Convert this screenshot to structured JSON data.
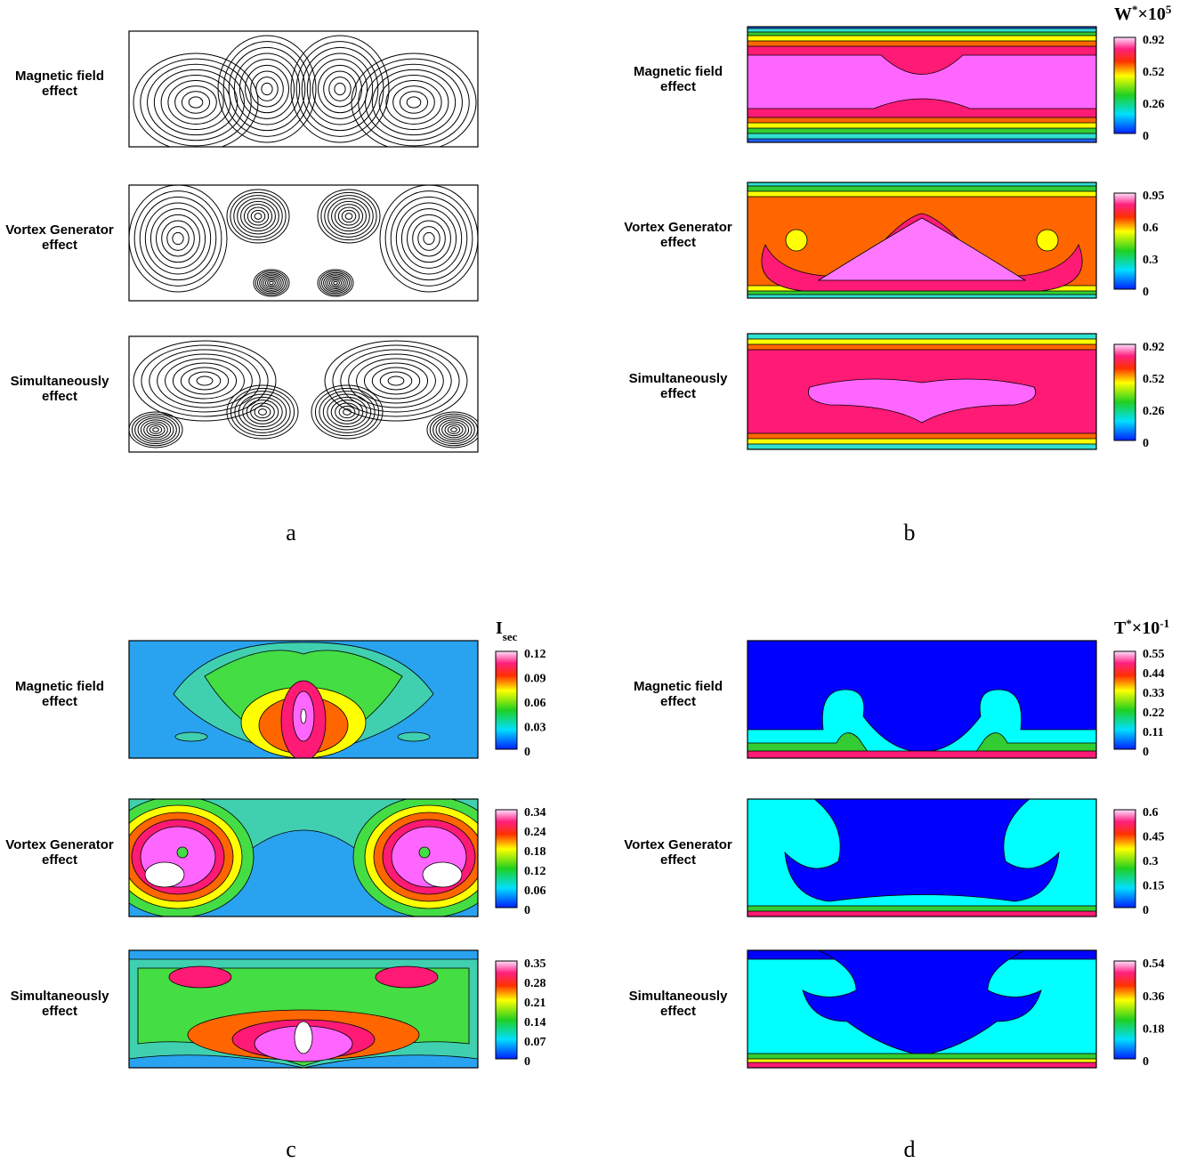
{
  "panels": [
    {
      "label": "a",
      "rows": [
        {
          "lines": [
            "Magnetic field",
            "effect"
          ]
        },
        {
          "lines": [
            "Vortex Generator",
            "effect"
          ]
        },
        {
          "lines": [
            "Simultaneously",
            "effect"
          ]
        }
      ]
    },
    {
      "label": "b",
      "colorbar_title": {
        "base": "W",
        "sup": "*",
        "mid": "×10",
        "exp": "5"
      },
      "rows": [
        {
          "lines": [
            "Magnetic field",
            "effect"
          ],
          "colorbar": [
            "0.92",
            "0.52",
            "0.26",
            "0"
          ]
        },
        {
          "lines": [
            "Vortex Generator",
            "effect"
          ],
          "colorbar": [
            "0.95",
            "0.6",
            "0.3",
            "0"
          ]
        },
        {
          "lines": [
            "Simultaneously",
            "effect"
          ],
          "colorbar": [
            "0.92",
            "0.52",
            "0.26",
            "0"
          ]
        }
      ]
    },
    {
      "label": "c",
      "colorbar_title": {
        "base": "I",
        "sub": "sec"
      },
      "rows": [
        {
          "lines": [
            "Magnetic field",
            "effect"
          ],
          "colorbar": [
            "0.12",
            "0.09",
            "0.06",
            "0.03",
            "0"
          ]
        },
        {
          "lines": [
            "Vortex Generator",
            "effect"
          ],
          "colorbar": [
            "0.34",
            "0.24",
            "0.18",
            "0.12",
            "0.06",
            "0"
          ]
        },
        {
          "lines": [
            "Simultaneously",
            "effect"
          ],
          "colorbar": [
            "0.35",
            "0.28",
            "0.21",
            "0.14",
            "0.07",
            "0"
          ]
        }
      ]
    },
    {
      "label": "d",
      "colorbar_title": {
        "base": "T",
        "sup": "*",
        "mid": "×10",
        "exp": "-1"
      },
      "rows": [
        {
          "lines": [
            "Magnetic field",
            "effect"
          ],
          "colorbar": [
            "0.55",
            "0.44",
            "0.33",
            "0.22",
            "0.11",
            "0"
          ]
        },
        {
          "lines": [
            "Vortex Generator",
            "effect"
          ],
          "colorbar": [
            "0.6",
            "0.45",
            "0.3",
            "0.15",
            "0"
          ]
        },
        {
          "lines": [
            "Simultaneously",
            "effect"
          ],
          "colorbar": [
            "0.54",
            "0.36",
            "0.18",
            "0"
          ]
        }
      ]
    }
  ]
}
